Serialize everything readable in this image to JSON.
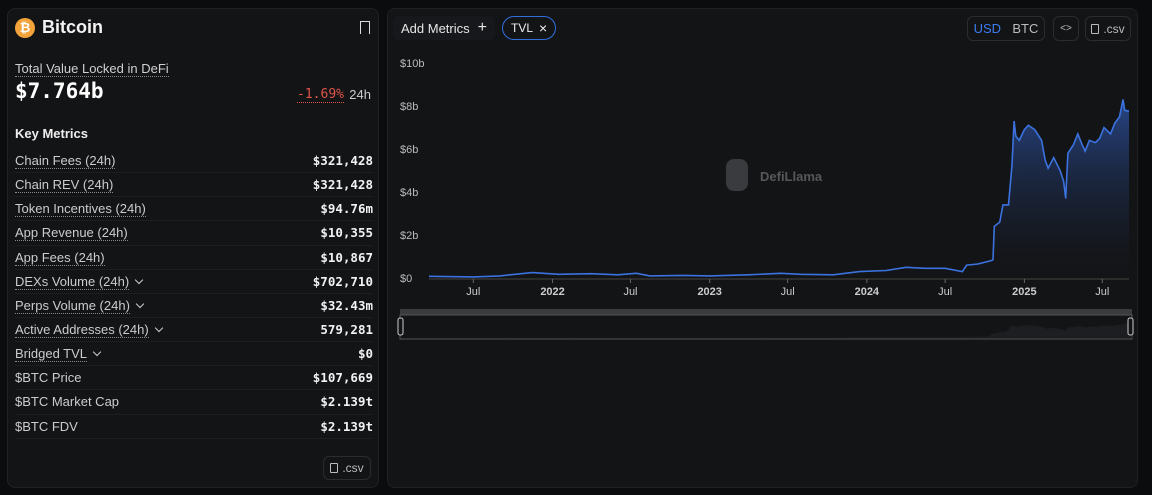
{
  "header": {
    "title": "Bitcoin",
    "logo_glyph": "₿",
    "brand_color": "#f2a33a"
  },
  "tvl": {
    "label": "Total Value Locked in DeFi",
    "value": "$7.764b",
    "change": "-1.69%",
    "period": "24h",
    "change_color": "#e0544a"
  },
  "key_metrics": {
    "title": "Key Metrics",
    "items": [
      {
        "label": "Chain Fees (24h)",
        "value": "$321,428",
        "underlined": true,
        "expandable": false
      },
      {
        "label": "Chain REV (24h)",
        "value": "$321,428",
        "underlined": true,
        "expandable": false
      },
      {
        "label": "Token Incentives (24h)",
        "value": "$94.76m",
        "underlined": true,
        "expandable": false
      },
      {
        "label": "App Revenue (24h)",
        "value": "$10,355",
        "underlined": true,
        "expandable": false
      },
      {
        "label": "App Fees (24h)",
        "value": "$10,867",
        "underlined": true,
        "expandable": false
      },
      {
        "label": "DEXs Volume (24h)",
        "value": "$702,710",
        "underlined": true,
        "expandable": true
      },
      {
        "label": "Perps Volume (24h)",
        "value": "$32.43m",
        "underlined": true,
        "expandable": true
      },
      {
        "label": "Active Addresses (24h)",
        "value": "579,281",
        "underlined": true,
        "expandable": true
      },
      {
        "label": "Bridged TVL",
        "value": "$0",
        "underlined": true,
        "expandable": true
      },
      {
        "label": "$BTC Price",
        "value": "$107,669",
        "underlined": false,
        "expandable": false
      },
      {
        "label": "$BTC Market Cap",
        "value": "$2.139t",
        "underlined": false,
        "expandable": false
      },
      {
        "label": "$BTC FDV",
        "value": "$2.139t",
        "underlined": false,
        "expandable": false
      }
    ],
    "csv_label": ".csv"
  },
  "toolbar": {
    "add_metrics": "Add Metrics",
    "add_icon": "+",
    "chip": "TVL",
    "chip_close": "×",
    "currency": [
      "USD",
      "BTC"
    ],
    "selected_currency": "USD",
    "embed": "<>",
    "csv_label": ".csv",
    "accent": "#3b7cf0"
  },
  "watermark": "DefiLlama",
  "chart_data": {
    "type": "area",
    "series": [
      {
        "name": "TVL",
        "color": "#3b72e0",
        "points": [
          [
            "2021-03-20",
            0.08
          ],
          [
            "2021-07-01",
            0.05
          ],
          [
            "2021-09-01",
            0.1
          ],
          [
            "2021-11-15",
            0.25
          ],
          [
            "2022-01-15",
            0.17
          ],
          [
            "2022-04-01",
            0.2
          ],
          [
            "2022-06-01",
            0.15
          ],
          [
            "2022-07-15",
            0.22
          ],
          [
            "2022-08-15",
            0.1
          ],
          [
            "2022-11-01",
            0.12
          ],
          [
            "2023-01-01",
            0.1
          ],
          [
            "2023-04-01",
            0.15
          ],
          [
            "2023-06-15",
            0.22
          ],
          [
            "2023-08-01",
            0.17
          ],
          [
            "2023-10-15",
            0.15
          ],
          [
            "2023-12-15",
            0.3
          ],
          [
            "2024-02-15",
            0.35
          ],
          [
            "2024-04-01",
            0.5
          ],
          [
            "2024-05-15",
            0.45
          ],
          [
            "2024-07-01",
            0.45
          ],
          [
            "2024-08-10",
            0.3
          ],
          [
            "2024-08-20",
            0.6
          ],
          [
            "2024-09-15",
            0.65
          ],
          [
            "2024-10-15",
            0.8
          ],
          [
            "2024-10-20",
            0.85
          ],
          [
            "2024-10-23",
            2.4
          ],
          [
            "2024-11-05",
            2.6
          ],
          [
            "2024-11-12",
            3.4
          ],
          [
            "2024-11-25",
            3.4
          ],
          [
            "2024-12-03",
            5.2
          ],
          [
            "2024-12-08",
            7.3
          ],
          [
            "2024-12-12",
            6.6
          ],
          [
            "2024-12-20",
            6.4
          ],
          [
            "2025-01-01",
            6.9
          ],
          [
            "2025-01-10",
            7.1
          ],
          [
            "2025-01-25",
            6.9
          ],
          [
            "2025-02-10",
            6.4
          ],
          [
            "2025-02-18",
            5.5
          ],
          [
            "2025-02-25",
            5.1
          ],
          [
            "2025-03-10",
            5.6
          ],
          [
            "2025-03-25",
            5.0
          ],
          [
            "2025-04-02",
            4.5
          ],
          [
            "2025-04-07",
            3.7
          ],
          [
            "2025-04-12",
            5.8
          ],
          [
            "2025-04-25",
            6.2
          ],
          [
            "2025-05-05",
            6.7
          ],
          [
            "2025-05-15",
            6.2
          ],
          [
            "2025-05-22",
            5.9
          ],
          [
            "2025-06-01",
            6.4
          ],
          [
            "2025-06-15",
            6.3
          ],
          [
            "2025-06-25",
            6.5
          ],
          [
            "2025-07-05",
            7.0
          ],
          [
            "2025-07-20",
            6.7
          ],
          [
            "2025-07-30",
            7.2
          ],
          [
            "2025-08-10",
            7.5
          ],
          [
            "2025-08-18",
            8.3
          ],
          [
            "2025-08-22",
            7.8
          ],
          [
            "2025-09-01",
            7.76
          ]
        ]
      }
    ],
    "yticks": [
      "$0",
      "$2b",
      "$4b",
      "$6b",
      "$8b",
      "$10b"
    ],
    "yvalues": [
      0,
      2,
      4,
      6,
      8,
      10
    ],
    "xticks": [
      [
        "2021-07-01",
        "Jul"
      ],
      [
        "2022-01-01",
        "2022"
      ],
      [
        "2022-07-01",
        "Jul"
      ],
      [
        "2023-01-01",
        "2023"
      ],
      [
        "2023-07-01",
        "Jul"
      ],
      [
        "2024-01-01",
        "2024"
      ],
      [
        "2024-07-01",
        "Jul"
      ],
      [
        "2025-01-01",
        "2025"
      ],
      [
        "2025-07-01",
        "Jul"
      ]
    ],
    "xrange": [
      "2021-03-20",
      "2025-09-01"
    ],
    "ylim": [
      0,
      10
    ],
    "grid": false
  }
}
